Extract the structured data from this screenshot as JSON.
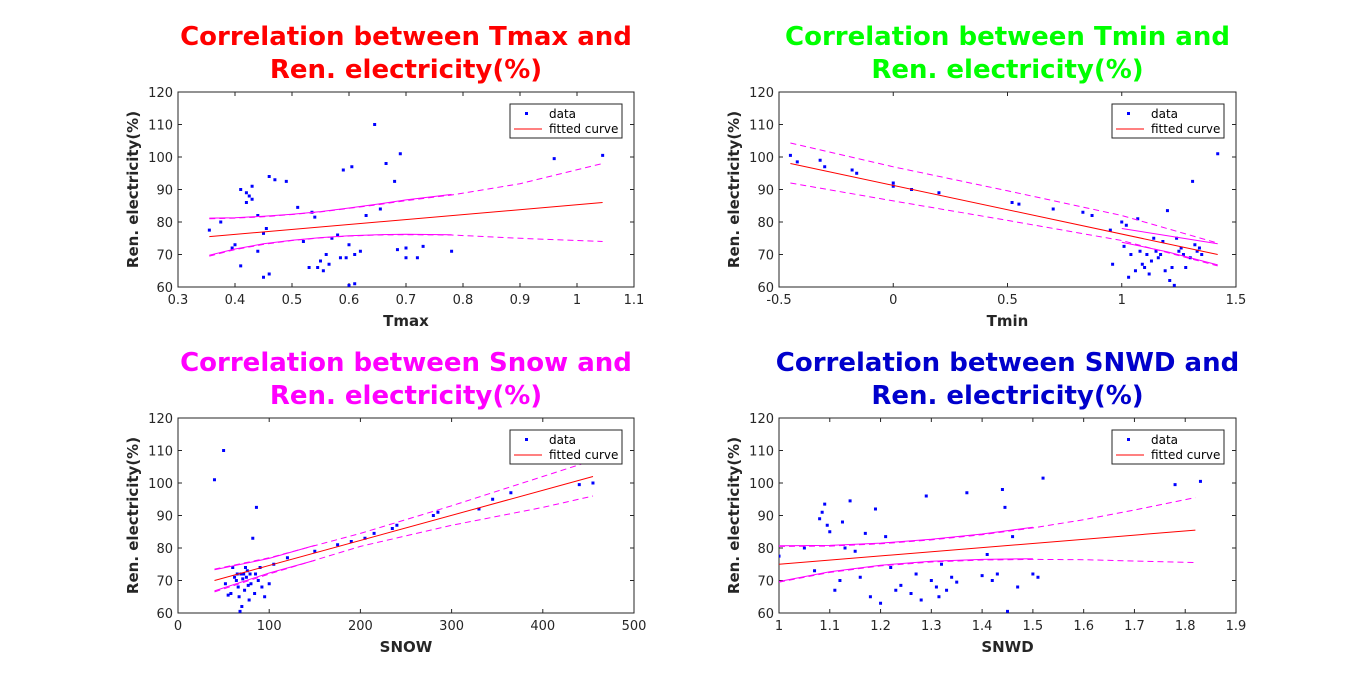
{
  "chart_data": [
    {
      "type": "scatter",
      "title": [
        "Correlation between Tmax and",
        "Ren. electricity(%)"
      ],
      "title_color": "#ff0000",
      "xlabel": "Tmax",
      "ylabel": "Ren. electricity(%)",
      "xlim": [
        0.3,
        1.1
      ],
      "ylim": [
        60,
        120
      ],
      "xticks": [
        "0.3",
        "0.4",
        "0.5",
        "0.6",
        "0.7",
        "0.8",
        "0.9",
        "1",
        "1.1"
      ],
      "yticks": [
        "60",
        "70",
        "80",
        "90",
        "100",
        "110",
        "120"
      ],
      "legend": {
        "position": "top-right",
        "entries": [
          "data",
          "fitted curve"
        ]
      },
      "series": [
        {
          "name": "data",
          "kind": "points",
          "color": "#0000ff",
          "x": [
            0.355,
            0.375,
            0.395,
            0.4,
            0.41,
            0.41,
            0.42,
            0.42,
            0.425,
            0.43,
            0.43,
            0.44,
            0.44,
            0.45,
            0.45,
            0.455,
            0.46,
            0.46,
            0.47,
            0.49,
            0.51,
            0.52,
            0.53,
            0.535,
            0.54,
            0.545,
            0.55,
            0.555,
            0.56,
            0.565,
            0.57,
            0.58,
            0.585,
            0.59,
            0.595,
            0.6,
            0.6,
            0.605,
            0.61,
            0.61,
            0.62,
            0.63,
            0.645,
            0.655,
            0.665,
            0.68,
            0.685,
            0.69,
            0.7,
            0.7,
            0.72,
            0.73,
            0.78,
            0.96,
            1.045
          ],
          "y": [
            77.5,
            80,
            72,
            73,
            66.5,
            90,
            89,
            86,
            88,
            91,
            87,
            82,
            71,
            63,
            76.5,
            78,
            64,
            94,
            93,
            92.5,
            84.5,
            74,
            66,
            83,
            81.5,
            66,
            68,
            65,
            70,
            67,
            75,
            76,
            69,
            96,
            69,
            60.5,
            73,
            97,
            70,
            61,
            71,
            82,
            110,
            84,
            98,
            92.5,
            71.5,
            101,
            69,
            72,
            69,
            72.5,
            71,
            99.5,
            100.5
          ]
        },
        {
          "name": "fitted curve",
          "kind": "line",
          "color": "#ff0000",
          "x": [
            0.355,
            1.045
          ],
          "y": [
            75.5,
            86
          ]
        },
        {
          "name": "upper bound",
          "kind": "dashed",
          "color": "#ff00ff",
          "x": [
            0.355,
            0.4,
            0.45,
            0.5,
            0.55,
            0.6,
            0.65,
            0.7,
            0.78,
            0.9,
            1.045
          ],
          "y": [
            81,
            81.2,
            81.6,
            82.3,
            83.1,
            84.2,
            85.3,
            86.6,
            88.3,
            91.8,
            98
          ]
        },
        {
          "name": "lower bound",
          "kind": "dashed",
          "color": "#ff00ff",
          "x": [
            0.355,
            0.4,
            0.45,
            0.5,
            0.55,
            0.6,
            0.65,
            0.7,
            0.78,
            0.9,
            1.045
          ],
          "y": [
            69.5,
            71.5,
            73.1,
            74.3,
            75.1,
            75.7,
            76.0,
            76.1,
            76.0,
            75.0,
            74
          ]
        },
        {
          "name": "upper bound 2",
          "kind": "solid",
          "color": "#ff00ff",
          "x": [
            0.355,
            0.4,
            0.45,
            0.5,
            0.55,
            0.6,
            0.65,
            0.7,
            0.78
          ],
          "y": [
            81.2,
            81.3,
            81.8,
            82.4,
            83.2,
            84.3,
            85.5,
            86.8,
            88.5
          ]
        },
        {
          "name": "lower bound 2",
          "kind": "solid",
          "color": "#ff00ff",
          "x": [
            0.355,
            0.4,
            0.45,
            0.5,
            0.55,
            0.6,
            0.65,
            0.7,
            0.78
          ],
          "y": [
            69.8,
            71.7,
            73.3,
            74.4,
            75.2,
            75.8,
            76.1,
            76.2,
            76.1
          ]
        }
      ]
    },
    {
      "type": "scatter",
      "title": [
        "Correlation between Tmin and",
        "Ren. electricity(%)"
      ],
      "title_color": "#00ff00",
      "xlabel": "Tmin",
      "ylabel": "Ren. electricity(%)",
      "xlim": [
        -0.5,
        1.5
      ],
      "ylim": [
        60,
        120
      ],
      "xticks": [
        "-0.5",
        "0",
        "0.5",
        "1",
        "1.5"
      ],
      "yticks": [
        "60",
        "70",
        "80",
        "90",
        "100",
        "110",
        "120"
      ],
      "legend": {
        "position": "top-right",
        "entries": [
          "data",
          "fitted curve"
        ]
      },
      "series": [
        {
          "name": "data",
          "kind": "points",
          "color": "#0000ff",
          "x": [
            -0.45,
            -0.42,
            -0.32,
            -0.3,
            -0.18,
            -0.16,
            0.0,
            0.0,
            0.08,
            0.2,
            0.52,
            0.55,
            0.7,
            0.83,
            0.87,
            0.95,
            0.96,
            1.0,
            1.01,
            1.02,
            1.03,
            1.04,
            1.06,
            1.07,
            1.08,
            1.09,
            1.1,
            1.11,
            1.12,
            1.13,
            1.14,
            1.15,
            1.16,
            1.17,
            1.18,
            1.19,
            1.2,
            1.21,
            1.22,
            1.23,
            1.24,
            1.25,
            1.26,
            1.27,
            1.28,
            1.3,
            1.31,
            1.32,
            1.33,
            1.34,
            1.35,
            1.42
          ],
          "y": [
            100.5,
            98.5,
            99,
            97,
            96,
            95,
            92,
            91,
            90,
            89,
            86,
            85.5,
            84,
            83,
            82,
            77.5,
            67,
            80,
            72.5,
            79,
            63,
            70,
            65,
            81,
            71,
            67,
            66,
            70,
            64,
            68,
            75,
            71,
            69,
            70,
            74,
            65,
            83.5,
            62,
            66,
            60.5,
            75,
            71,
            72,
            70,
            66,
            69,
            92.5,
            73,
            71,
            72,
            70,
            101
          ]
        },
        {
          "name": "fitted curve",
          "kind": "line",
          "color": "#ff0000",
          "x": [
            -0.45,
            1.42
          ],
          "y": [
            98,
            70
          ]
        },
        {
          "name": "upper bound",
          "kind": "dashed",
          "color": "#ff00ff",
          "x": [
            -0.45,
            0.0,
            0.5,
            1.0,
            1.42
          ],
          "y": [
            104.3,
            97.0,
            89.6,
            82.0,
            73.5
          ]
        },
        {
          "name": "lower bound",
          "kind": "dashed",
          "color": "#ff00ff",
          "x": [
            -0.45,
            0.0,
            0.5,
            1.0,
            1.42
          ],
          "y": [
            92.0,
            86.5,
            80.5,
            74.3,
            66.5
          ]
        },
        {
          "name": "upper bound 2",
          "kind": "solid",
          "color": "#ff00ff",
          "x": [
            1.0,
            1.2,
            1.42
          ],
          "y": [
            78,
            75.8,
            73.3
          ]
        },
        {
          "name": "lower bound 2",
          "kind": "solid",
          "color": "#ff00ff",
          "x": [
            1.0,
            1.2,
            1.42
          ],
          "y": [
            73.8,
            70.8,
            66.8
          ]
        }
      ]
    },
    {
      "type": "scatter",
      "title": [
        "Correlation between Snow and",
        "Ren. electricity(%)"
      ],
      "title_color": "#ff00ff",
      "xlabel": "SNOW",
      "ylabel": "Ren. electricity(%)",
      "xlim": [
        0,
        500
      ],
      "ylim": [
        60,
        120
      ],
      "xticks": [
        "0",
        "100",
        "200",
        "300",
        "400",
        "500"
      ],
      "yticks": [
        "60",
        "70",
        "80",
        "90",
        "100",
        "110",
        "120"
      ],
      "legend": {
        "position": "top-right",
        "entries": [
          "data",
          "fitted curve"
        ]
      },
      "series": [
        {
          "name": "data",
          "kind": "points",
          "color": "#0000ff",
          "x": [
            40,
            50,
            52,
            55,
            58,
            60,
            62,
            64,
            65,
            66,
            67,
            68,
            69,
            70,
            71,
            72,
            73,
            74,
            75,
            76,
            77,
            78,
            79,
            80,
            82,
            84,
            85,
            86,
            88,
            90,
            92,
            95,
            100,
            105,
            120,
            150,
            175,
            190,
            205,
            215,
            235,
            240,
            280,
            285,
            330,
            345,
            365,
            440,
            455
          ],
          "y": [
            101,
            110,
            69,
            65.5,
            66,
            74,
            71,
            70,
            72,
            68,
            65,
            60.5,
            72,
            62,
            70.5,
            72,
            67,
            74,
            71,
            73,
            68.5,
            64,
            72,
            69,
            83,
            66,
            72,
            92.5,
            70,
            74,
            68,
            65,
            69,
            75,
            77,
            79,
            81,
            82,
            83,
            84.5,
            86,
            87,
            90,
            91,
            92,
            95,
            97,
            99.5,
            100
          ]
        },
        {
          "name": "fitted curve",
          "kind": "line",
          "color": "#ff0000",
          "x": [
            40,
            455
          ],
          "y": [
            70,
            102
          ]
        },
        {
          "name": "upper bound",
          "kind": "dashed",
          "color": "#ff00ff",
          "x": [
            40,
            100,
            200,
            300,
            400,
            455
          ],
          "y": [
            73.5,
            77,
            84.5,
            93,
            102,
            107
          ]
        },
        {
          "name": "lower bound",
          "kind": "dashed",
          "color": "#ff00ff",
          "x": [
            40,
            100,
            200,
            300,
            400,
            455
          ],
          "y": [
            66.5,
            72,
            80.5,
            87,
            92.5,
            96
          ]
        },
        {
          "name": "upper bound 2",
          "kind": "solid",
          "color": "#ff00ff",
          "x": [
            40,
            100,
            150
          ],
          "y": [
            73.3,
            76.8,
            80.8
          ]
        },
        {
          "name": "lower bound 2",
          "kind": "solid",
          "color": "#ff00ff",
          "x": [
            40,
            100,
            150
          ],
          "y": [
            66.8,
            72.3,
            76.2
          ]
        }
      ]
    },
    {
      "type": "scatter",
      "title": [
        "Correlation between SNWD and",
        "Ren. electricity(%)"
      ],
      "title_color": "#0000cc",
      "xlabel": "SNWD",
      "ylabel": "Ren. electricity(%)",
      "xlim": [
        1,
        1.9
      ],
      "ylim": [
        60,
        120
      ],
      "xticks": [
        "1",
        "1.1",
        "1.2",
        "1.3",
        "1.4",
        "1.5",
        "1.6",
        "1.7",
        "1.8",
        "1.9"
      ],
      "yticks": [
        "60",
        "70",
        "80",
        "90",
        "100",
        "110",
        "120"
      ],
      "legend": {
        "position": "top-right",
        "entries": [
          "data",
          "fitted curve"
        ]
      },
      "series": [
        {
          "name": "data",
          "kind": "points",
          "color": "#0000ff",
          "x": [
            1.0,
            1.05,
            1.07,
            1.08,
            1.085,
            1.09,
            1.095,
            1.1,
            1.11,
            1.12,
            1.125,
            1.13,
            1.14,
            1.15,
            1.16,
            1.17,
            1.18,
            1.19,
            1.2,
            1.21,
            1.22,
            1.23,
            1.24,
            1.26,
            1.27,
            1.28,
            1.29,
            1.3,
            1.31,
            1.315,
            1.32,
            1.33,
            1.34,
            1.35,
            1.37,
            1.4,
            1.41,
            1.42,
            1.43,
            1.44,
            1.445,
            1.45,
            1.46,
            1.47,
            1.5,
            1.51,
            1.52,
            1.78,
            1.83
          ],
          "y": [
            77.5,
            80,
            73,
            89,
            91,
            93.5,
            87,
            85,
            67,
            70,
            88,
            80,
            94.5,
            79,
            71,
            84.5,
            65,
            92,
            63,
            83.5,
            74,
            67,
            68.5,
            66,
            72,
            64,
            96,
            70,
            68,
            65,
            75,
            67,
            71,
            69.5,
            97,
            71.5,
            78,
            70,
            72,
            98,
            92.5,
            60.5,
            83.5,
            68,
            72,
            71,
            101.5,
            99.5,
            100.5
          ]
        },
        {
          "name": "fitted curve",
          "kind": "line",
          "color": "#ff0000",
          "x": [
            1.0,
            1.82
          ],
          "y": [
            75,
            85.5
          ]
        },
        {
          "name": "upper bound",
          "kind": "dashed",
          "color": "#ff00ff",
          "x": [
            1.0,
            1.1,
            1.2,
            1.3,
            1.4,
            1.5,
            1.6,
            1.7,
            1.82
          ],
          "y": [
            80.5,
            80.6,
            81.3,
            82.5,
            84.1,
            86.2,
            88.7,
            91.7,
            95.5
          ]
        },
        {
          "name": "lower bound",
          "kind": "dashed",
          "color": "#ff00ff",
          "x": [
            1.0,
            1.1,
            1.2,
            1.3,
            1.4,
            1.5,
            1.6,
            1.7,
            1.82
          ],
          "y": [
            69.5,
            72.5,
            74.5,
            75.7,
            76.3,
            76.5,
            76.4,
            76.0,
            75.5
          ]
        },
        {
          "name": "upper bound 2",
          "kind": "solid",
          "color": "#ff00ff",
          "x": [
            1.0,
            1.1,
            1.2,
            1.3,
            1.4,
            1.5
          ],
          "y": [
            80.7,
            80.8,
            81.5,
            82.7,
            84.3,
            86.4
          ]
        },
        {
          "name": "lower bound 2",
          "kind": "solid",
          "color": "#ff00ff",
          "x": [
            1.0,
            1.1,
            1.2,
            1.3,
            1.4,
            1.5
          ],
          "y": [
            69.7,
            72.7,
            74.7,
            75.9,
            76.5,
            76.7
          ]
        }
      ]
    }
  ]
}
